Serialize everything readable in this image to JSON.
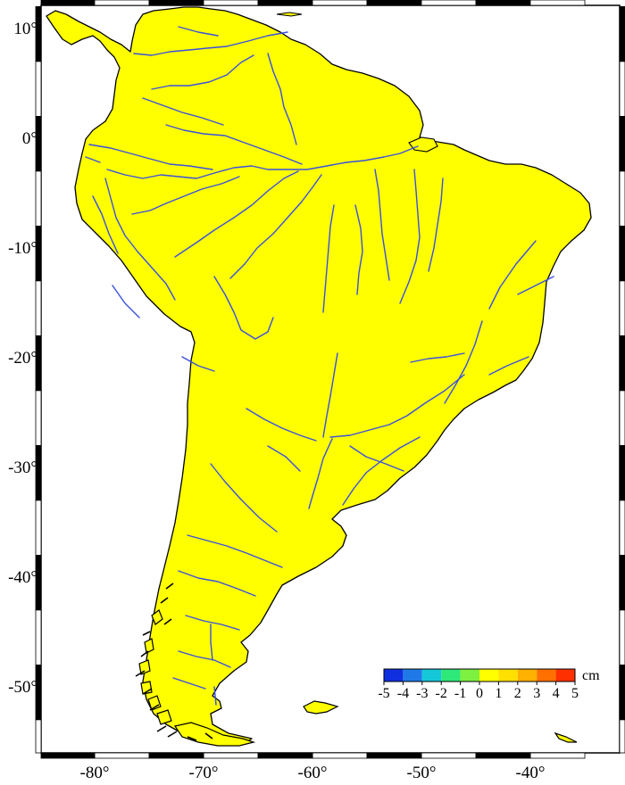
{
  "map": {
    "region": "South America",
    "projection": "Mercator",
    "lon_range": [
      -85,
      -35
    ],
    "lat_range": [
      -56,
      12
    ],
    "land_color": "#ffff00",
    "ocean_color": "#ffffff",
    "coastline_color": "#000000",
    "river_color": "#3a4fe0",
    "x_tick_values": [
      -80,
      -70,
      -60,
      -50,
      -40
    ],
    "y_tick_values": [
      10,
      0,
      -10,
      -20,
      -30,
      -40,
      -50
    ],
    "x_tick_labels": [
      "-80°",
      "-70°",
      "-60°",
      "-50°",
      "-40°"
    ],
    "y_tick_labels": [
      "10°",
      "0°",
      "-10°",
      "-20°",
      "-30°",
      "-40°",
      "-50°"
    ]
  },
  "colorbar": {
    "unit": "cm",
    "tick_labels": [
      "-5",
      "-4",
      "-3",
      "-2",
      "-1",
      "0",
      "1",
      "2",
      "3",
      "4",
      "5"
    ],
    "colors": [
      "#1030e0",
      "#1f7ae8",
      "#14c8d8",
      "#2ee87a",
      "#7ef040",
      "#ffff00",
      "#ffe000",
      "#ffb000",
      "#ff7000",
      "#ff3000",
      "#d00000"
    ]
  }
}
